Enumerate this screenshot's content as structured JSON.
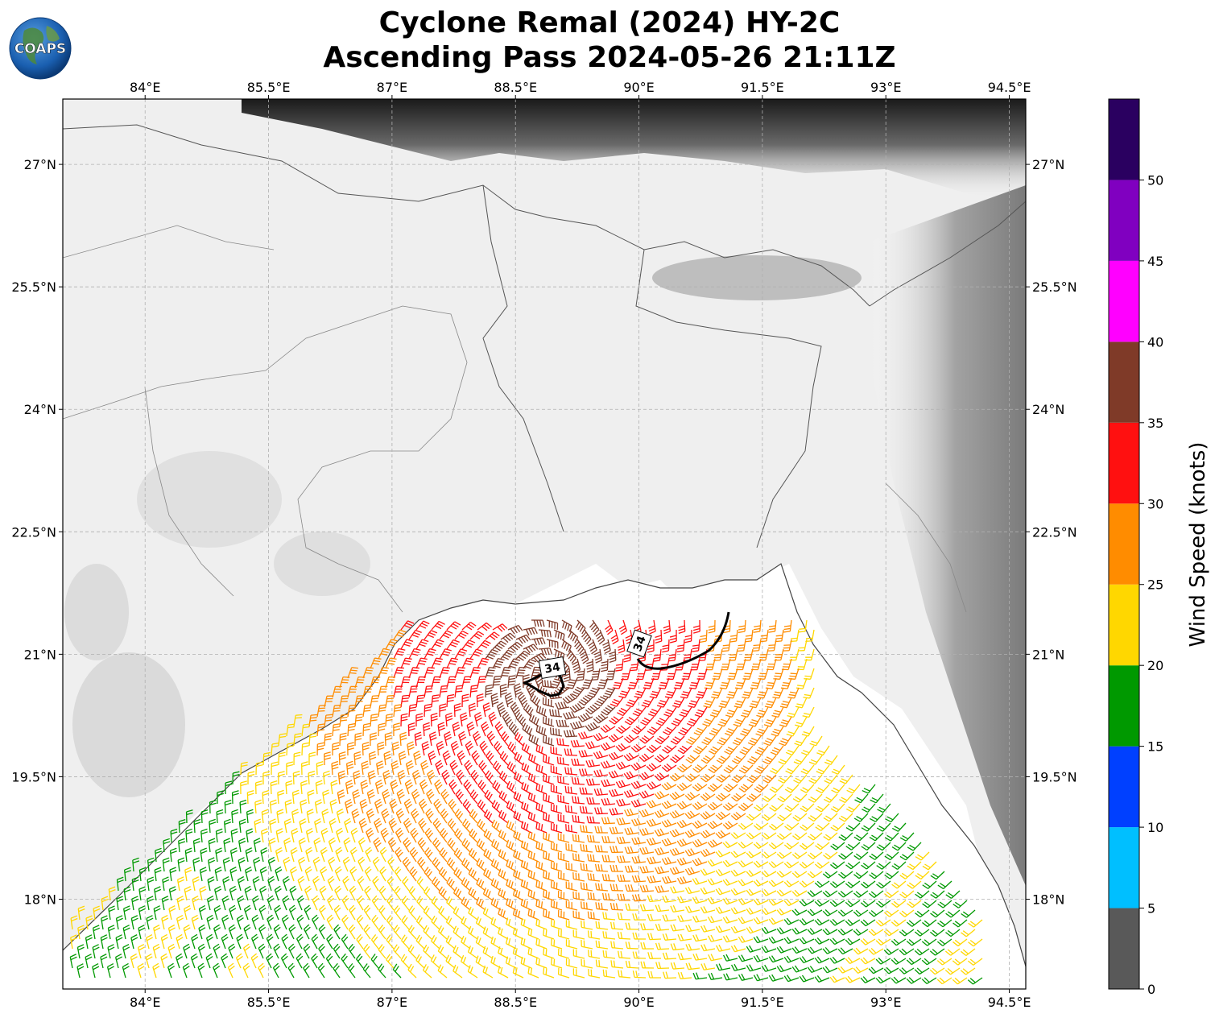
{
  "title_line1": "Cyclone Remal (2024) HY-2C",
  "title_line2": "Ascending Pass 2024-05-26 21:11Z",
  "logo_text": "COAPS",
  "colorbar": {
    "label": "Wind Speed (knots)",
    "ticks": [
      "0",
      "5",
      "10",
      "15",
      "20",
      "25",
      "30",
      "35",
      "40",
      "45",
      "50"
    ],
    "bands": [
      {
        "from": 0,
        "to": 5,
        "color": "#595959"
      },
      {
        "from": 5,
        "to": 10,
        "color": "#00bfff"
      },
      {
        "from": 10,
        "to": 15,
        "color": "#0040ff"
      },
      {
        "from": 15,
        "to": 20,
        "color": "#009900"
      },
      {
        "from": 20,
        "to": 25,
        "color": "#ffd700"
      },
      {
        "from": 25,
        "to": 30,
        "color": "#ff8c00"
      },
      {
        "from": 30,
        "to": 35,
        "color": "#ff1010"
      },
      {
        "from": 35,
        "to": 40,
        "color": "#7f3a28"
      },
      {
        "from": 40,
        "to": 45,
        "color": "#ff00ff"
      },
      {
        "from": 45,
        "to": 50,
        "color": "#8000c0"
      },
      {
        "from": 50,
        "to": 55,
        "color": "#2a0060"
      }
    ],
    "range": [
      0,
      55
    ]
  },
  "map": {
    "lon_range": [
      83.0,
      94.7
    ],
    "lat_range": [
      16.9,
      27.8
    ],
    "lon_ticks": [
      {
        "value": 84.0,
        "label": "84°E"
      },
      {
        "value": 85.5,
        "label": "85.5°E"
      },
      {
        "value": 87.0,
        "label": "87°E"
      },
      {
        "value": 88.5,
        "label": "88.5°E"
      },
      {
        "value": 90.0,
        "label": "90°E"
      },
      {
        "value": 91.5,
        "label": "91.5°E"
      },
      {
        "value": 93.0,
        "label": "93°E"
      },
      {
        "value": 94.5,
        "label": "94.5°E"
      }
    ],
    "lat_ticks": [
      {
        "value": 27.0,
        "label": "27°N"
      },
      {
        "value": 25.5,
        "label": "25.5°N"
      },
      {
        "value": 24.0,
        "label": "24°N"
      },
      {
        "value": 22.5,
        "label": "22.5°N"
      },
      {
        "value": 21.0,
        "label": "21°N"
      },
      {
        "value": 19.5,
        "label": "19.5°N"
      },
      {
        "value": 18.0,
        "label": "18°N"
      }
    ],
    "contour_label_a": "34",
    "contour_label_b": "34"
  }
}
